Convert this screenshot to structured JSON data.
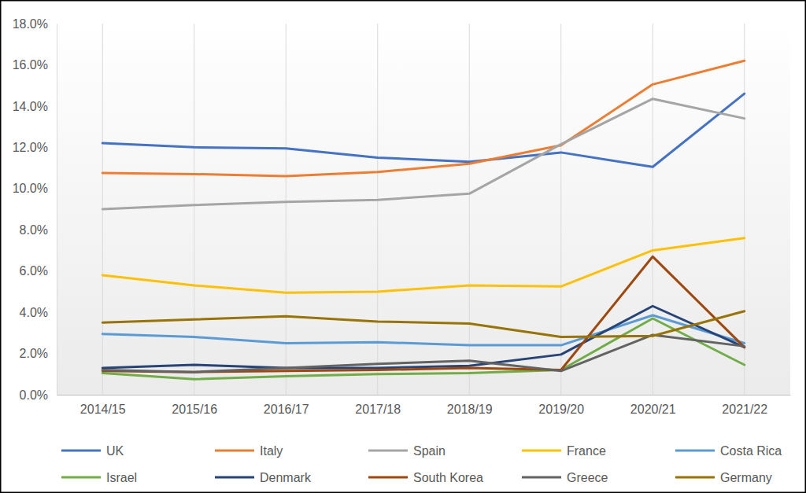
{
  "chart_data": {
    "type": "line",
    "categories": [
      "2014/15",
      "2015/16",
      "2016/17",
      "2017/18",
      "2018/19",
      "2019/20",
      "2020/21",
      "2021/22"
    ],
    "series": [
      {
        "name": "UK",
        "color": "#4472c4",
        "values": [
          12.2,
          12.0,
          11.95,
          11.5,
          11.3,
          11.75,
          11.05,
          14.6
        ]
      },
      {
        "name": "Italy",
        "color": "#ed7d31",
        "values": [
          10.75,
          10.7,
          10.6,
          10.8,
          11.2,
          12.1,
          15.05,
          16.2
        ]
      },
      {
        "name": "Spain",
        "color": "#a5a5a5",
        "values": [
          9.0,
          9.2,
          9.35,
          9.45,
          9.75,
          12.15,
          14.35,
          13.4
        ]
      },
      {
        "name": "France",
        "color": "#ffc000",
        "values": [
          5.8,
          5.3,
          4.95,
          5.0,
          5.3,
          5.25,
          7.0,
          7.6
        ]
      },
      {
        "name": "Costa Rica",
        "color": "#5b9bd5",
        "values": [
          2.95,
          2.8,
          2.5,
          2.55,
          2.4,
          2.4,
          3.85,
          2.5
        ]
      },
      {
        "name": "Israel",
        "color": "#70ad47",
        "values": [
          1.05,
          0.75,
          0.9,
          1.0,
          1.05,
          1.2,
          3.7,
          1.45
        ]
      },
      {
        "name": "Denmark",
        "color": "#264478",
        "values": [
          1.3,
          1.45,
          1.3,
          1.3,
          1.4,
          1.95,
          4.3,
          2.3
        ]
      },
      {
        "name": "South Korea",
        "color": "#9e480e",
        "values": [
          1.15,
          1.1,
          1.15,
          1.2,
          1.3,
          1.2,
          6.7,
          2.3
        ]
      },
      {
        "name": "Greece",
        "color": "#636363",
        "values": [
          1.2,
          1.1,
          1.3,
          1.5,
          1.65,
          1.15,
          2.9,
          2.35
        ]
      },
      {
        "name": "Germany",
        "color": "#997300",
        "values": [
          3.5,
          3.65,
          3.8,
          3.55,
          3.45,
          2.8,
          2.85,
          4.05
        ]
      }
    ],
    "ylim": [
      0,
      18
    ],
    "yticks": [
      {
        "value": 0,
        "label": "0.0%"
      },
      {
        "value": 2,
        "label": "2.0%"
      },
      {
        "value": 4,
        "label": "4.0%"
      },
      {
        "value": 6,
        "label": "6.0%"
      },
      {
        "value": 8,
        "label": "8.0%"
      },
      {
        "value": 10,
        "label": "10.0%"
      },
      {
        "value": 12,
        "label": "12.0%"
      },
      {
        "value": 14,
        "label": "14.0%"
      },
      {
        "value": 16,
        "label": "16.0%"
      },
      {
        "value": 18,
        "label": "18.0%"
      }
    ],
    "grid": true,
    "legend": "bottom"
  }
}
